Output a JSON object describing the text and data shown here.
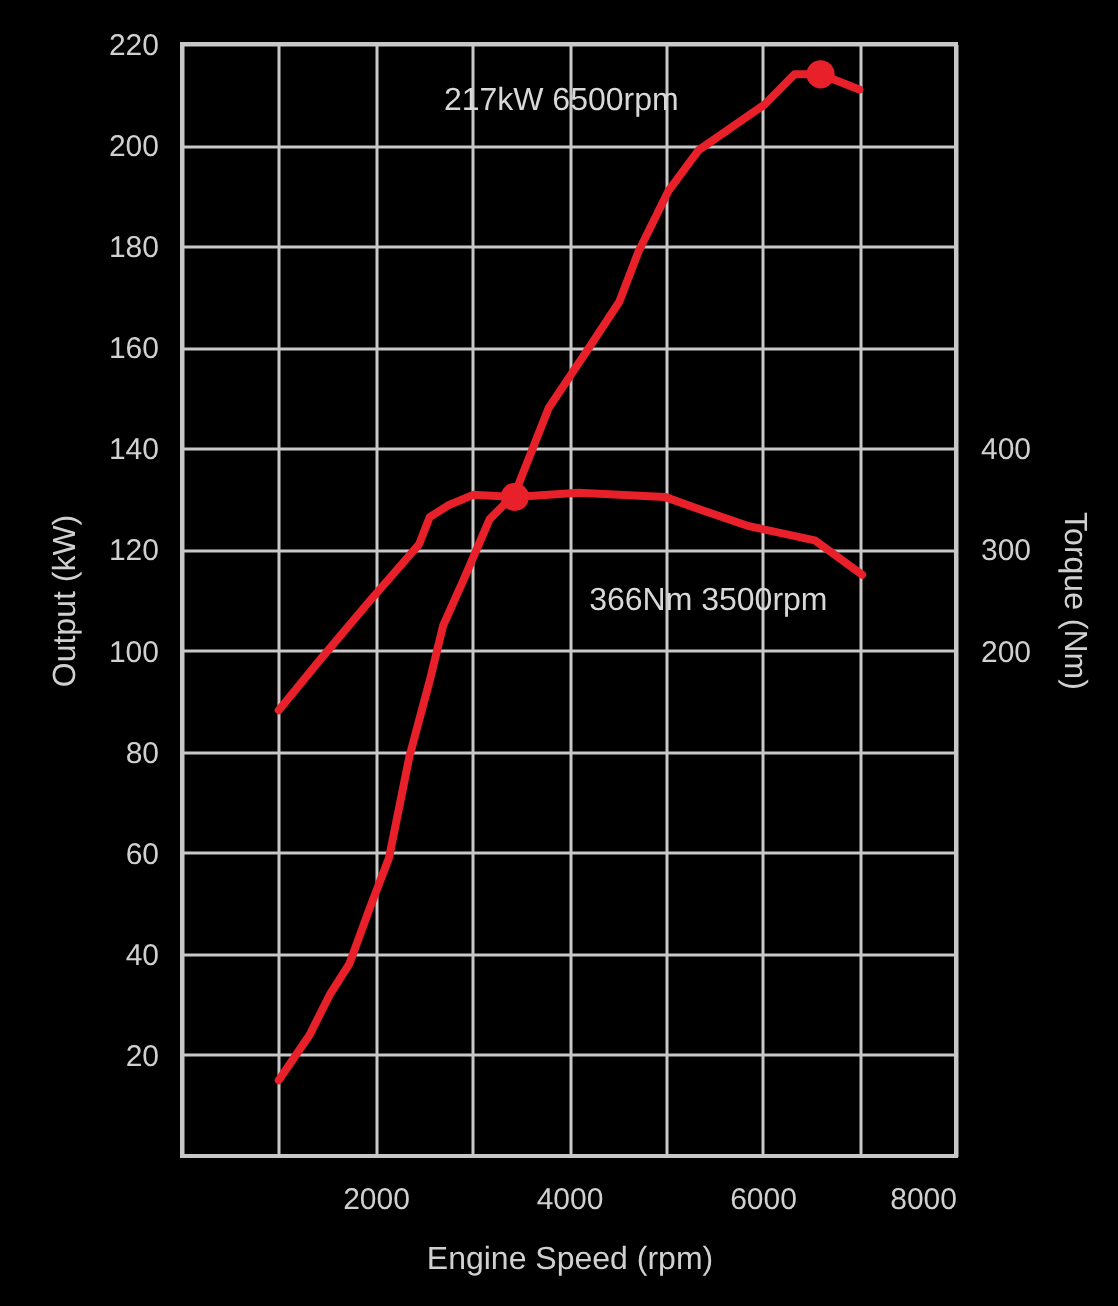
{
  "chart_data": {
    "type": "line",
    "xlabel": "Engine Speed (rpm)",
    "ylabel": "Output (kW)",
    "y2label": "Torque (Nm)",
    "annotations": [
      "217kW 6500rpm",
      "366Nm 3500rpm"
    ],
    "series": [
      {
        "color": "#e8202a",
        "x": [
          1000,
          1320,
          1530,
          1730,
          1940,
          2140,
          2350,
          2560,
          2700,
          2910,
          3180,
          3440,
          3790,
          4210,
          4520,
          4720,
          5030,
          5340,
          6020,
          6330,
          6600,
          7000
        ],
        "values": [
          15,
          24,
          32,
          38,
          49,
          59,
          79,
          94,
          105,
          114,
          126,
          131,
          148,
          160,
          169,
          179,
          191,
          199,
          208,
          214,
          214,
          211
        ]
      },
      {
        "axis": "y2",
        "color": "#e8202a",
        "x": [
          1000,
          1420,
          1940,
          2450,
          2560,
          2760,
          3010,
          3440,
          4100,
          4990,
          5340,
          5860,
          6540,
          7030
        ],
        "values": [
          141,
          190,
          249,
          305,
          332,
          344,
          354,
          352,
          356,
          352,
          340,
          323,
          309,
          275
        ]
      },
      {
        "type": "scatter",
        "marker": "circle",
        "color": "#e8202a",
        "x": [
          6600
        ],
        "values": [
          214
        ]
      },
      {
        "type": "scatter",
        "marker": "circle",
        "axis": "y2",
        "color": "#e8202a",
        "x": [
          3440
        ],
        "values": [
          352
        ]
      }
    ],
    "xlim": [
      0,
      8000
    ],
    "xticks": [
      {
        "value": 0,
        "label": null
      },
      {
        "value": 1000,
        "label": null
      },
      2000,
      {
        "value": 3000,
        "label": null
      },
      4000,
      {
        "value": 5000,
        "label": null
      },
      6000,
      {
        "value": 7000,
        "label": null
      },
      8000
    ],
    "ylim": [
      0,
      220
    ],
    "yticks": [
      20,
      40,
      60,
      80,
      100,
      120,
      140,
      160,
      180,
      200,
      220
    ],
    "y2lim": [
      -300,
      800
    ],
    "y2ticks": [
      200,
      300,
      400
    ],
    "grid": true,
    "line_style": "solid"
  }
}
